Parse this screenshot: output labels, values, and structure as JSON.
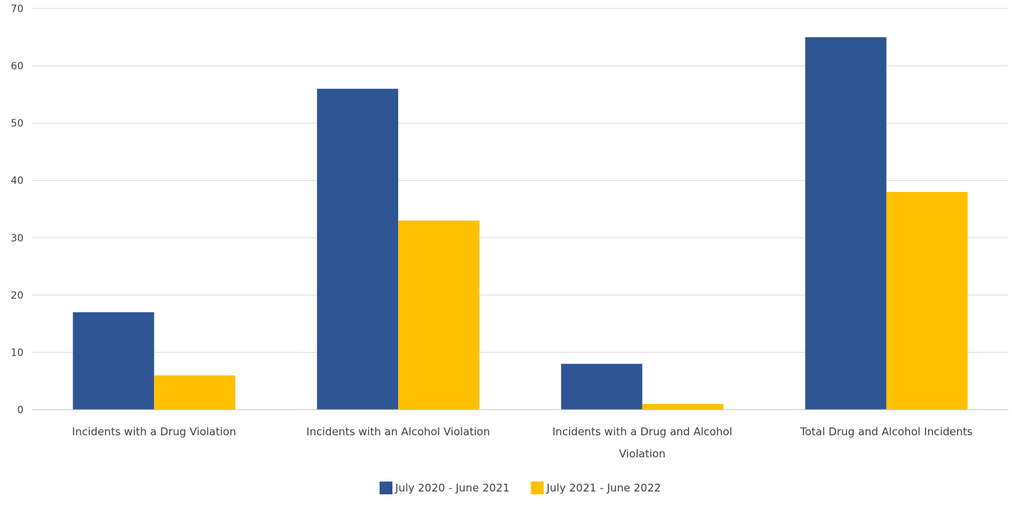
{
  "chart_data": {
    "type": "bar",
    "title": "",
    "xlabel": "",
    "ylabel": "",
    "ylim": [
      0,
      70
    ],
    "yticks": [
      0,
      10,
      20,
      30,
      40,
      50,
      60,
      70
    ],
    "grid": true,
    "legend_position": "bottom",
    "categories": [
      [
        "Incidents with a Drug Violation"
      ],
      [
        "Incidents with an Alcohol Violation"
      ],
      [
        "Incidents with a Drug and Alcohol",
        "Violation"
      ],
      [
        "Total Drug and Alcohol Incidents"
      ]
    ],
    "series": [
      {
        "name": "July 2020 - June 2021",
        "color": "#2E5594",
        "values": [
          17,
          56,
          8,
          65
        ]
      },
      {
        "name": "July 2021 - June 2022",
        "color": "#FFC000",
        "values": [
          6,
          33,
          1,
          38
        ]
      }
    ]
  }
}
